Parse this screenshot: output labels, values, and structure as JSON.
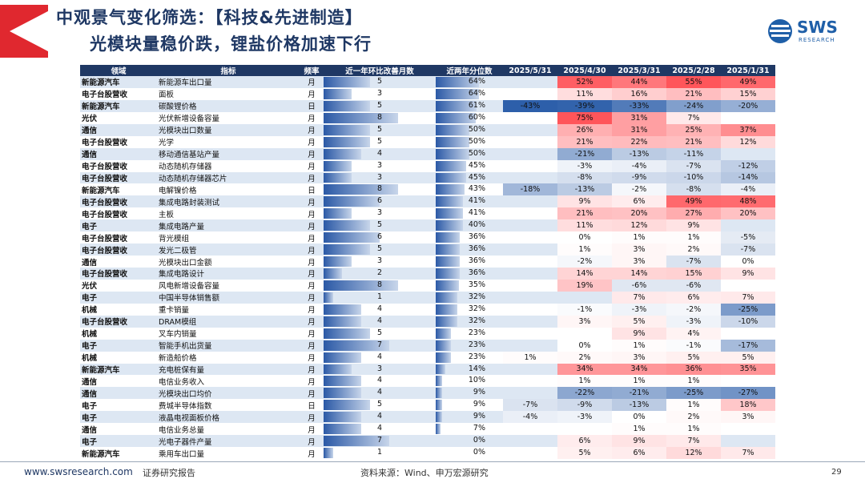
{
  "title": {
    "line1": "中观景气变化筛选：【科技&先进制造】",
    "line2": "光模块量稳价跌，锂盐价格加速下行"
  },
  "logo": {
    "text": "SWS",
    "sub": "RESEARCH"
  },
  "table": {
    "headers": [
      "领域",
      "指标",
      "频率",
      "近一年环比改善月数",
      "近两年分位数",
      "2025/5/31",
      "2025/4/30",
      "2025/3/31",
      "2025/2/28",
      "2025/1/31"
    ],
    "rows": [
      {
        "domain": "新能源汽车",
        "indicator": "新能源车出口量",
        "freq": "月",
        "months": 5,
        "pct": "64%",
        "m5": "",
        "m4": "52%",
        "m3": "44%",
        "m2": "55%",
        "m1": "49%"
      },
      {
        "domain": "电子台股营收",
        "indicator": "面板",
        "freq": "月",
        "months": 3,
        "pct": "64%",
        "m5": "",
        "m4": "11%",
        "m3": "16%",
        "m2": "21%",
        "m1": "15%"
      },
      {
        "domain": "新能源汽车",
        "indicator": "碳酸锂价格",
        "freq": "日",
        "months": 5,
        "pct": "61%",
        "m5": "-43%",
        "m4": "-39%",
        "m3": "-33%",
        "m2": "-24%",
        "m1": "-20%"
      },
      {
        "domain": "光伏",
        "indicator": "光伏新增设备容量",
        "freq": "月",
        "months": 8,
        "pct": "60%",
        "m5": "",
        "m4": "75%",
        "m3": "31%",
        "m2": "7%",
        "m1": ""
      },
      {
        "domain": "通信",
        "indicator": "光模块出口数量",
        "freq": "月",
        "months": 5,
        "pct": "50%",
        "m5": "",
        "m4": "26%",
        "m3": "31%",
        "m2": "25%",
        "m1": "37%"
      },
      {
        "domain": "电子台股营收",
        "indicator": "光学",
        "freq": "月",
        "months": 5,
        "pct": "50%",
        "m5": "",
        "m4": "21%",
        "m3": "22%",
        "m2": "21%",
        "m1": "12%"
      },
      {
        "domain": "通信",
        "indicator": "移动通信基站产量",
        "freq": "月",
        "months": 4,
        "pct": "50%",
        "m5": "",
        "m4": "-21%",
        "m3": "-13%",
        "m2": "-11%",
        "m1": ""
      },
      {
        "domain": "电子台股营收",
        "indicator": "动态随机存储器",
        "freq": "月",
        "months": 3,
        "pct": "45%",
        "m5": "",
        "m4": "-3%",
        "m3": "-4%",
        "m2": "-7%",
        "m1": "-12%"
      },
      {
        "domain": "电子台股营收",
        "indicator": "动态随机存储器芯片",
        "freq": "月",
        "months": 3,
        "pct": "45%",
        "m5": "",
        "m4": "-8%",
        "m3": "-9%",
        "m2": "-10%",
        "m1": "-14%"
      },
      {
        "domain": "新能源汽车",
        "indicator": "电解镍价格",
        "freq": "日",
        "months": 8,
        "pct": "43%",
        "m5": "-18%",
        "m4": "-13%",
        "m3": "-2%",
        "m2": "-8%",
        "m1": "-4%"
      },
      {
        "domain": "电子台股营收",
        "indicator": "集成电路封装测试",
        "freq": "月",
        "months": 6,
        "pct": "41%",
        "m5": "",
        "m4": "9%",
        "m3": "6%",
        "m2": "49%",
        "m1": "48%"
      },
      {
        "domain": "电子台股营收",
        "indicator": "主板",
        "freq": "月",
        "months": 3,
        "pct": "41%",
        "m5": "",
        "m4": "21%",
        "m3": "20%",
        "m2": "27%",
        "m1": "20%"
      },
      {
        "domain": "电子",
        "indicator": "集成电路产量",
        "freq": "月",
        "months": 5,
        "pct": "40%",
        "m5": "",
        "m4": "11%",
        "m3": "12%",
        "m2": "9%",
        "m1": ""
      },
      {
        "domain": "电子台股营收",
        "indicator": "背光模组",
        "freq": "月",
        "months": 6,
        "pct": "36%",
        "m5": "",
        "m4": "0%",
        "m3": "1%",
        "m2": "1%",
        "m1": "-5%"
      },
      {
        "domain": "电子台股营收",
        "indicator": "发光二极管",
        "freq": "月",
        "months": 5,
        "pct": "36%",
        "m5": "",
        "m4": "1%",
        "m3": "3%",
        "m2": "2%",
        "m1": "-7%"
      },
      {
        "domain": "通信",
        "indicator": "光模块出口金额",
        "freq": "月",
        "months": 3,
        "pct": "36%",
        "m5": "",
        "m4": "-2%",
        "m3": "3%",
        "m2": "-7%",
        "m1": "0%"
      },
      {
        "domain": "电子台股营收",
        "indicator": "集成电路设计",
        "freq": "月",
        "months": 2,
        "pct": "36%",
        "m5": "",
        "m4": "14%",
        "m3": "14%",
        "m2": "15%",
        "m1": "9%"
      },
      {
        "domain": "光伏",
        "indicator": "风电新增设备容量",
        "freq": "月",
        "months": 8,
        "pct": "35%",
        "m5": "",
        "m4": "19%",
        "m3": "-6%",
        "m2": "-6%",
        "m1": ""
      },
      {
        "domain": "电子",
        "indicator": "中国半导体销售额",
        "freq": "月",
        "months": 1,
        "pct": "32%",
        "m5": "",
        "m4": "",
        "m3": "7%",
        "m2": "6%",
        "m1": "7%"
      },
      {
        "domain": "机械",
        "indicator": "重卡销量",
        "freq": "月",
        "months": 4,
        "pct": "32%",
        "m5": "",
        "m4": "-1%",
        "m3": "-3%",
        "m2": "-2%",
        "m1": "-25%"
      },
      {
        "domain": "电子台股营收",
        "indicator": "DRAM模组",
        "freq": "月",
        "months": 4,
        "pct": "32%",
        "m5": "",
        "m4": "3%",
        "m3": "5%",
        "m2": "-3%",
        "m1": "-10%"
      },
      {
        "domain": "机械",
        "indicator": "叉车内销量",
        "freq": "月",
        "months": 5,
        "pct": "23%",
        "m5": "",
        "m4": "",
        "m3": "9%",
        "m2": "4%",
        "m1": ""
      },
      {
        "domain": "电子",
        "indicator": "智能手机出货量",
        "freq": "月",
        "months": 7,
        "pct": "23%",
        "m5": "",
        "m4": "0%",
        "m3": "1%",
        "m2": "-1%",
        "m1": "-17%"
      },
      {
        "domain": "机械",
        "indicator": "新造船价格",
        "freq": "月",
        "months": 4,
        "pct": "23%",
        "m5": "1%",
        "m4": "2%",
        "m3": "3%",
        "m2": "5%",
        "m1": "5%"
      },
      {
        "domain": "新能源汽车",
        "indicator": "充电桩保有量",
        "freq": "月",
        "months": 3,
        "pct": "14%",
        "m5": "",
        "m4": "34%",
        "m3": "34%",
        "m2": "36%",
        "m1": "35%"
      },
      {
        "domain": "通信",
        "indicator": "电信业务收入",
        "freq": "月",
        "months": 4,
        "pct": "10%",
        "m5": "",
        "m4": "1%",
        "m3": "1%",
        "m2": "1%",
        "m1": ""
      },
      {
        "domain": "通信",
        "indicator": "光模块出口均价",
        "freq": "月",
        "months": 4,
        "pct": "9%",
        "m5": "",
        "m4": "-22%",
        "m3": "-21%",
        "m2": "-25%",
        "m1": "-27%"
      },
      {
        "domain": "电子",
        "indicator": "费城半导体指数",
        "freq": "日",
        "months": 5,
        "pct": "9%",
        "m5": "-7%",
        "m4": "-9%",
        "m3": "-13%",
        "m2": "1%",
        "m1": "18%"
      },
      {
        "domain": "电子",
        "indicator": "液晶电视面板价格",
        "freq": "月",
        "months": 4,
        "pct": "9%",
        "m5": "-4%",
        "m4": "-3%",
        "m3": "0%",
        "m2": "2%",
        "m1": "3%"
      },
      {
        "domain": "通信",
        "indicator": "电信业务总量",
        "freq": "月",
        "months": 4,
        "pct": "7%",
        "m5": "",
        "m4": "",
        "m3": "1%",
        "m2": "1%",
        "m1": ""
      },
      {
        "domain": "电子",
        "indicator": "光电子器件产量",
        "freq": "月",
        "months": 7,
        "pct": "0%",
        "m5": "",
        "m4": "6%",
        "m3": "9%",
        "m2": "7%",
        "m1": ""
      },
      {
        "domain": "新能源汽车",
        "indicator": "乘用车出口量",
        "freq": "月",
        "months": 1,
        "pct": "0%",
        "m5": "",
        "m4": "5%",
        "m3": "6%",
        "m2": "12%",
        "m1": "7%"
      }
    ]
  },
  "colors": {
    "header": "#1f3864",
    "title": "#1f3864",
    "accent_red": "#e0282f",
    "positive_max": "#f0555a",
    "negative_max": "#2e5ea8",
    "row_alt": "#dde7f3"
  },
  "footer": {
    "url": "www.swsresearch.com",
    "report": "证券研究报告",
    "source": "资料来源：Wind、申万宏源研究",
    "page": "29"
  }
}
